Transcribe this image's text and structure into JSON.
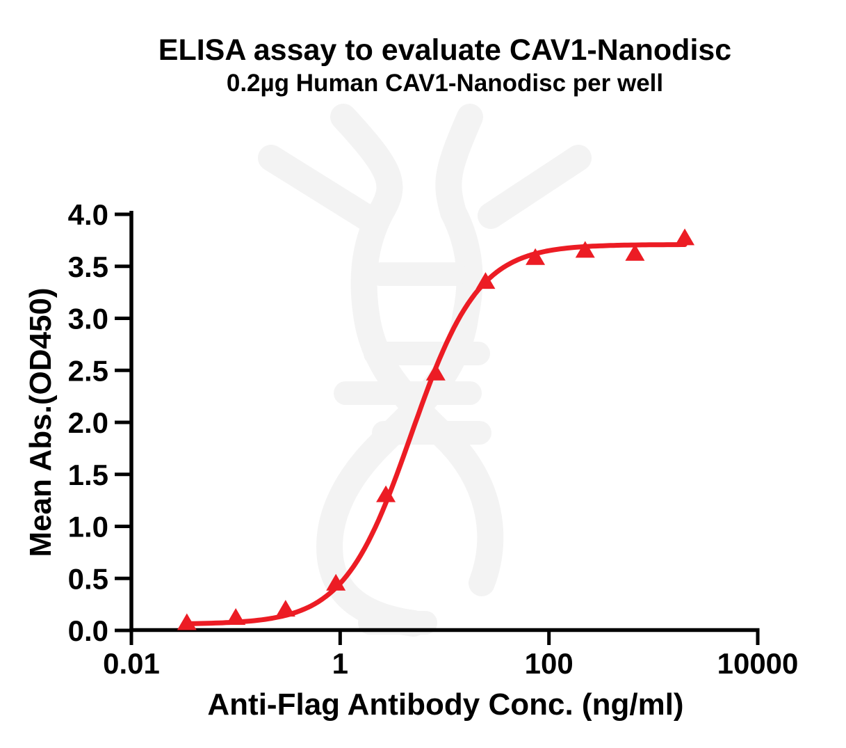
{
  "chart_data": {
    "type": "line",
    "title": "ELISA assay to evaluate CAV1-Nanodisc",
    "subtitle": "0.2µg Human CAV1-Nanodisc per well",
    "xlabel": "Anti-Flag Antibody Conc. (ng/ml)",
    "ylabel": "Mean Abs.(OD450)",
    "x_scale": "log10",
    "xlim": [
      0.01,
      10000
    ],
    "ylim": [
      0.0,
      4.0
    ],
    "grid": false,
    "legend": "none",
    "x_ticks": [
      {
        "value": 0.01,
        "label": "0.01"
      },
      {
        "value": 1,
        "label": "1"
      },
      {
        "value": 100,
        "label": "100"
      },
      {
        "value": 10000,
        "label": "10000"
      }
    ],
    "y_ticks": [
      {
        "value": 0.0,
        "label": "0.0"
      },
      {
        "value": 0.5,
        "label": "0.5"
      },
      {
        "value": 1.0,
        "label": "1.0"
      },
      {
        "value": 1.5,
        "label": "1.5"
      },
      {
        "value": 2.0,
        "label": "2.0"
      },
      {
        "value": 2.5,
        "label": "2.5"
      },
      {
        "value": 3.0,
        "label": "3.0"
      },
      {
        "value": 3.5,
        "label": "3.5"
      },
      {
        "value": 4.0,
        "label": "4.0"
      }
    ],
    "series": [
      {
        "name": "Human CAV1-Nanodisc",
        "marker": "filled-triangle-up",
        "color": "#ec1c24",
        "points": [
          {
            "x": 0.034,
            "y": 0.07
          },
          {
            "x": 0.1,
            "y": 0.12
          },
          {
            "x": 0.3,
            "y": 0.2
          },
          {
            "x": 0.91,
            "y": 0.45
          },
          {
            "x": 2.74,
            "y": 1.3
          },
          {
            "x": 8.23,
            "y": 2.47
          },
          {
            "x": 24.69,
            "y": 3.35
          },
          {
            "x": 74.07,
            "y": 3.58
          },
          {
            "x": 222.2,
            "y": 3.65
          },
          {
            "x": 666.7,
            "y": 3.62
          },
          {
            "x": 2000,
            "y": 3.77
          }
        ],
        "fit_4pl": {
          "bottom": 0.06,
          "top": 3.71,
          "ec50": 4.8,
          "hill": 1.35
        }
      }
    ]
  },
  "colors": {
    "curve": "#ec1c24",
    "axis": "#000000",
    "text": "#000000",
    "watermark": "#f3f3f3",
    "background": "#ffffff"
  },
  "watermark": {
    "name": "dna-helix-antibody-logo",
    "color": "#f3f3f3"
  }
}
